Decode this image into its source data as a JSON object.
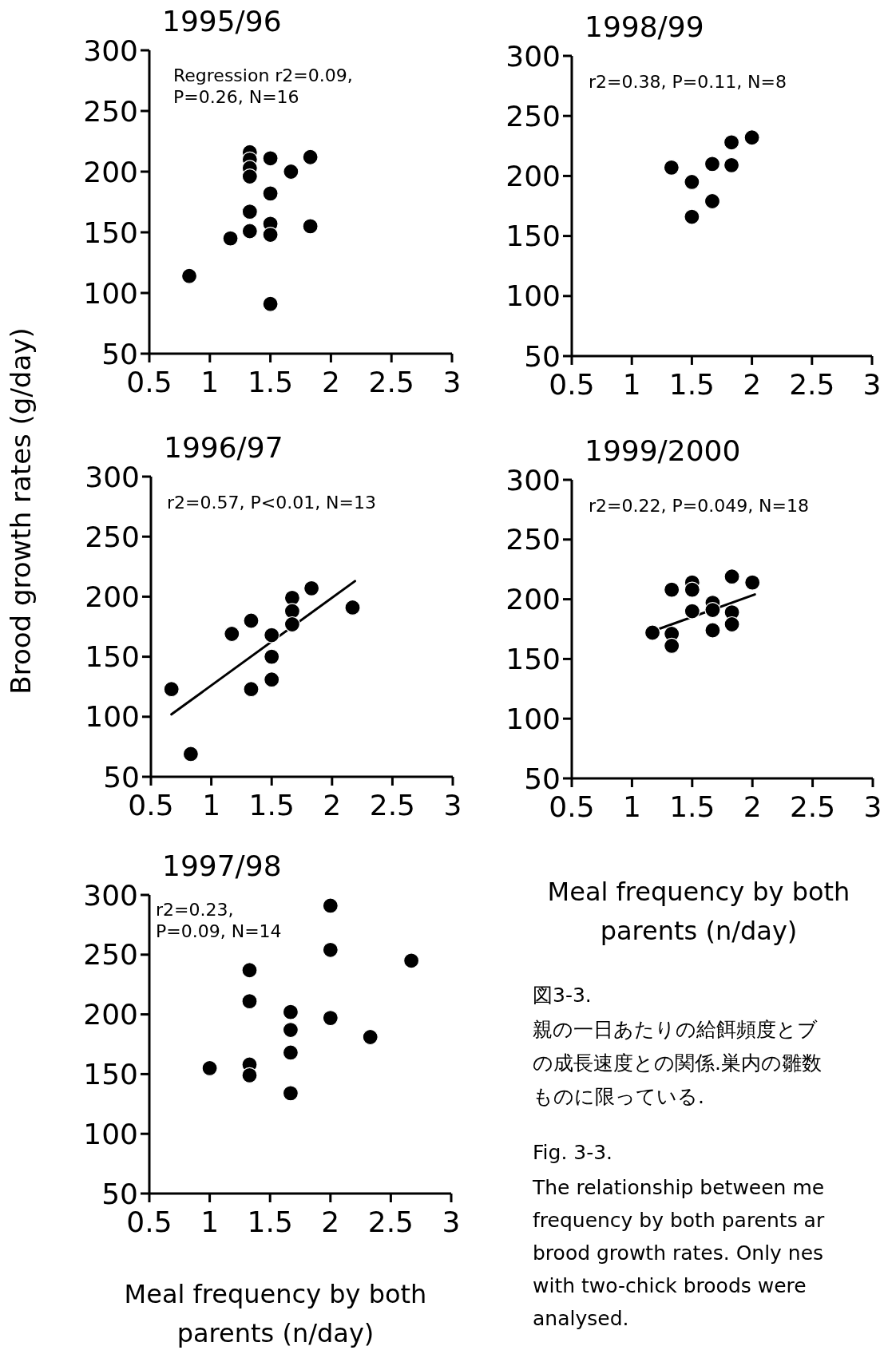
{
  "chart_data": [
    {
      "type": "scatter",
      "title": "1995/96",
      "annotations": [
        "Regression r2=0.09,\nP=0.26, N=16"
      ],
      "xlim": [
        0.5,
        3
      ],
      "ylim": [
        50,
        300
      ],
      "xticks": [
        0.5,
        1,
        1.5,
        2,
        2.5,
        3
      ],
      "yticks": [
        50,
        100,
        150,
        200,
        250,
        300
      ],
      "marker": "circle",
      "series": [
        {
          "type": "scatter",
          "color": "#000000",
          "x": [
            0.83,
            1.17,
            1.33,
            1.33,
            1.33,
            1.33,
            1.33,
            1.33,
            1.5,
            1.5,
            1.5,
            1.5,
            1.5,
            1.67,
            1.83,
            1.83
          ],
          "values": [
            114,
            145,
            216,
            210,
            203,
            196,
            167,
            151,
            211,
            182,
            157,
            148,
            91,
            200,
            212,
            155
          ]
        }
      ]
    },
    {
      "type": "scatter",
      "title": "1998/99",
      "annotations": [
        "r2=0.38,  P=0.11, N=8"
      ],
      "xlim": [
        0.5,
        3
      ],
      "ylim": [
        50,
        300
      ],
      "xticks": [
        0.5,
        1,
        1.5,
        2,
        2.5,
        3
      ],
      "yticks": [
        50,
        100,
        150,
        200,
        250,
        300
      ],
      "marker": "circle",
      "series": [
        {
          "type": "scatter",
          "color": "#000000",
          "x": [
            1.33,
            1.5,
            1.5,
            1.67,
            1.67,
            1.83,
            1.83,
            2.0
          ],
          "values": [
            207,
            195,
            166,
            210,
            179,
            228,
            209,
            232
          ]
        }
      ]
    },
    {
      "type": "scatter",
      "title": "1996/97",
      "ylabel": "Brood growth rates (g/day)",
      "annotations": [
        "r2=0.57,  P<0.01, N=13"
      ],
      "xlim": [
        0.5,
        3
      ],
      "ylim": [
        50,
        300
      ],
      "xticks": [
        0.5,
        1,
        1.5,
        2,
        2.5,
        3
      ],
      "yticks": [
        50,
        100,
        150,
        200,
        250,
        300
      ],
      "series": [
        {
          "type": "scatter",
          "marker": "circle",
          "color": "#000000",
          "x": [
            0.67,
            0.83,
            1.17,
            1.33,
            1.33,
            1.5,
            1.5,
            1.5,
            1.67,
            1.67,
            1.67,
            1.83,
            2.17
          ],
          "values": [
            123,
            69,
            169,
            180,
            123,
            168,
            150,
            131,
            199,
            188,
            177,
            207,
            191
          ]
        },
        {
          "type": "line",
          "marker": "none",
          "color": "#000000",
          "x": [
            0.67,
            2.19
          ],
          "values": [
            102,
            213
          ]
        }
      ]
    },
    {
      "type": "scatter",
      "title": "1999/2000",
      "xlabel": "Meal frequency by both parents (n/day)",
      "annotations": [
        "r2=0.22,  P=0.049, N=18"
      ],
      "xlim": [
        0.5,
        3
      ],
      "ylim": [
        50,
        300
      ],
      "xticks": [
        0.5,
        1,
        1.5,
        2,
        2.5,
        3
      ],
      "yticks": [
        50,
        100,
        150,
        200,
        250,
        300
      ],
      "series": [
        {
          "type": "scatter",
          "marker": "circle",
          "color": "#000000",
          "x": [
            1.17,
            1.33,
            1.33,
            1.33,
            1.5,
            1.5,
            1.5,
            1.67,
            1.67,
            1.67,
            1.83,
            1.83,
            1.83,
            2.0
          ],
          "values": [
            172,
            208,
            171,
            161,
            214,
            208,
            190,
            197,
            191,
            174,
            219,
            189,
            179,
            214
          ]
        },
        {
          "type": "line",
          "marker": "none",
          "color": "#000000",
          "x": [
            1.22,
            2.02
          ],
          "values": [
            175,
            204
          ]
        }
      ]
    },
    {
      "type": "scatter",
      "title": "1997/98",
      "xlabel": "Meal frequency by both parents (n/day)",
      "annotations": [
        "r2=0.23,\nP=0.09, N=14"
      ],
      "xlim": [
        0.5,
        3
      ],
      "ylim": [
        50,
        300
      ],
      "xticks": [
        0.5,
        1,
        1.5,
        2,
        2.5,
        3
      ],
      "yticks": [
        50,
        100,
        150,
        200,
        250,
        300
      ],
      "marker": "circle",
      "series": [
        {
          "type": "scatter",
          "color": "#000000",
          "x": [
            1.0,
            1.33,
            1.33,
            1.33,
            1.33,
            1.67,
            1.67,
            1.67,
            1.67,
            2.0,
            2.0,
            2.0,
            2.33,
            2.67
          ],
          "values": [
            155,
            237,
            211,
            158,
            149,
            202,
            187,
            168,
            134,
            291,
            254,
            197,
            181,
            245
          ]
        }
      ]
    },
    {
      "type": "other",
      "annotations": [
        "図3-3.",
        "親の一日あたりの給餌頻度とブ",
        "の成長速度との関係.巣内の雛数",
        "ものに限っている.",
        "Fig. 3-3.",
        "The relationship between me\nfrequency by both parents ar\nbrood growth rates. Only nes\nwith two-chick broods were\nanalysed."
      ]
    }
  ]
}
